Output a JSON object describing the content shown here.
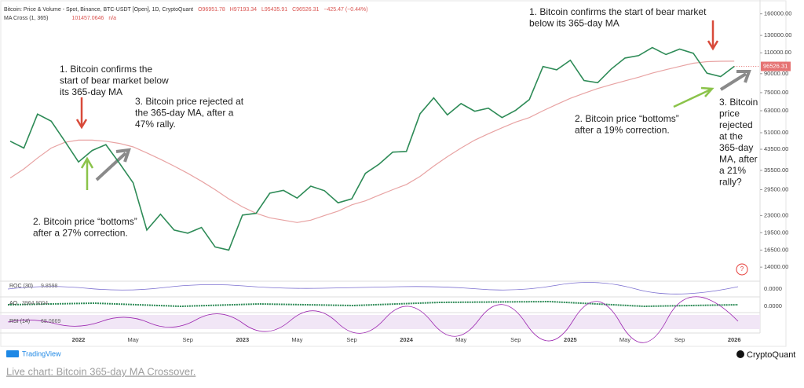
{
  "chart_data": {
    "type": "line",
    "header": {
      "symbol": "Bitcoin: Price & Volume - Spot, Binance, BTC-USDT [Open], 1D, CryptoQuant",
      "ohlc": [
        "O96951.78",
        "H97193.34",
        "L95435.91",
        "C96526.31",
        "−425.47 (−0.44%)"
      ],
      "indicator": "MA Cross (1, 365)",
      "indicator_values": [
        "n/a"
      ]
    },
    "categories": [
      null,
      null,
      null,
      null,
      null,
      "2022",
      null,
      null,
      null,
      "May",
      null,
      null,
      null,
      "Sep",
      null,
      null,
      null,
      "2023",
      null,
      null,
      null,
      "May",
      null,
      null,
      null,
      "Sep",
      null,
      null,
      null,
      "2024",
      null,
      null,
      null,
      "May",
      null,
      null,
      null,
      "Sep",
      null,
      null,
      null,
      "2025",
      null,
      null,
      null,
      "May",
      null,
      null,
      null,
      "Sep",
      null,
      null,
      null,
      "2026"
    ],
    "series": [
      {
        "color": "#2e8b57",
        "values": [
          47000,
          44000,
          61000,
          57000,
          47000,
          38500,
          43000,
          45500,
          38000,
          31500,
          20000,
          23300,
          20000,
          19400,
          20500,
          17000,
          16500,
          23100,
          23500,
          28500,
          29300,
          27200,
          30500,
          29200,
          26000,
          27000,
          34500,
          37700,
          42300,
          42600,
          61200,
          71300,
          60600,
          67500,
          62700,
          64600,
          59000,
          63300,
          70200,
          96400,
          93400,
          102400,
          84300,
          82500,
          94200,
          104600,
          107100,
          115700,
          108200,
          114000,
          109500,
          90400,
          87500,
          96526.31
        ]
      },
      {
        "color": "#e8a3a3",
        "values": [
          33000,
          36000,
          40000,
          44000,
          46500,
          47500,
          47500,
          47000,
          46000,
          44500,
          42000,
          39500,
          37000,
          34500,
          32000,
          29500,
          27000,
          25000,
          23500,
          22500,
          22000,
          21500,
          22000,
          23000,
          24000,
          25500,
          26500,
          28000,
          29500,
          31000,
          33500,
          37000,
          40500,
          44000,
          47500,
          50500,
          53500,
          56500,
          59000,
          63000,
          67000,
          71000,
          74500,
          78000,
          81000,
          84000,
          87000,
          90500,
          93500,
          96500,
          99500,
          101000,
          101400,
          101457.0646
        ]
      }
    ],
    "log_scale": true,
    "ylim": [
      12800,
      176000
    ],
    "yticks": [
      {
        "value": 14000,
        "label": "14000.00"
      },
      {
        "value": 16500,
        "label": "16500.00"
      },
      {
        "value": 19500,
        "label": "19500.00"
      },
      {
        "value": 23000,
        "label": "23000.00"
      },
      {
        "value": 29500,
        "label": "29500.00"
      },
      {
        "value": 35500,
        "label": "35500.00"
      },
      {
        "value": 43500,
        "label": "43500.00"
      },
      {
        "value": 51000,
        "label": "51000.00"
      },
      {
        "value": 63000,
        "label": "63000.00"
      },
      {
        "value": 75000,
        "label": "75000.00"
      },
      {
        "value": 90000,
        "label": "90000.00"
      },
      {
        "value": 110000,
        "label": "110000.00"
      },
      {
        "value": 130000,
        "label": "130000.00"
      },
      {
        "value": 160000,
        "label": "160000.00"
      }
    ],
    "annotations": [
      {
        "lines": [
          "1. Bitcoin confirms the",
          "start of bear market below",
          "its 365-day MA"
        ]
      },
      {
        "lines": [
          "3. Bitcoin price rejected at",
          "the 365-day MA, after a",
          "47% rally."
        ]
      },
      {
        "lines": [
          "2. Bitcoin price “bottoms”",
          "after a 27% correction."
        ]
      },
      {
        "lines": [
          "1. Bitcoin confirms the start of bear market",
          "below its 365-day MA"
        ]
      },
      {
        "lines": [
          "2. Bitcoin price “bottoms”",
          "after a 19% correction."
        ]
      },
      {
        "lines": [
          "3. Bitcoin",
          "price",
          "rejected",
          "at the",
          "365-day",
          "MA, after",
          "a 21%",
          "rally?"
        ]
      }
    ],
    "panes": [
      {
        "label": "ROC (30)",
        "value": "9.8598",
        "axis_label": "0.0000"
      },
      {
        "label": "AO",
        "value": "3964.9004",
        "axis_label": "0.0000"
      },
      {
        "label": "RSI (14)",
        "value": "68.0669"
      }
    ],
    "footer": {
      "left": "TradingView",
      "right": "CryptoQuant",
      "link": "Live chart: Bitcoin 365-day MA Crossover."
    }
  }
}
